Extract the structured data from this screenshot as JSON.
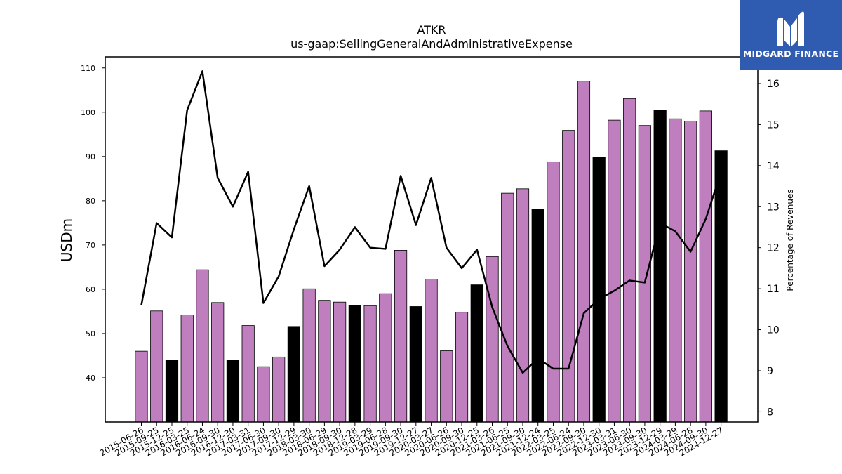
{
  "chart_data": {
    "type": "bar",
    "title": "ATKR",
    "subtitle": "us-gaap:SellingGeneralAndAdministrativeExpense",
    "ylabel": "USDm",
    "y2label": "Percentage of Revenues",
    "ylim": [
      30,
      112.5
    ],
    "y2lim": [
      7.75,
      16.65
    ],
    "yticks": [
      40,
      50,
      60,
      70,
      80,
      90,
      100,
      110
    ],
    "y2ticks": [
      8,
      9,
      10,
      11,
      12,
      13,
      14,
      15,
      16
    ],
    "categories": [
      "2015-06-26",
      "2015-09-25",
      "2015-12-25",
      "2016-03-25",
      "2016-06-24",
      "2016-09-30",
      "2016-12-30",
      "2017-03-31",
      "2017-06-30",
      "2017-09-30",
      "2017-12-29",
      "2018-03-30",
      "2018-06-29",
      "2018-09-30",
      "2018-12-28",
      "2019-03-29",
      "2019-06-28",
      "2019-09-30",
      "2019-12-27",
      "2020-03-27",
      "2020-06-26",
      "2020-09-30",
      "2020-12-25",
      "2021-03-26",
      "2021-06-25",
      "2021-09-30",
      "2021-12-24",
      "2022-03-25",
      "2022-06-24",
      "2022-09-30",
      "2022-12-30",
      "2023-03-31",
      "2023-06-30",
      "2023-09-30",
      "2023-12-29",
      "2024-03-29",
      "2024-06-28",
      "2024-09-30",
      "2024-12-27"
    ],
    "series": [
      {
        "values": [
          46.0,
          55.1,
          43.9,
          54.2,
          64.4,
          57.0,
          43.9,
          51.8,
          42.5,
          44.7,
          51.6,
          60.1,
          57.5,
          57.1,
          56.4,
          56.3,
          59.0,
          68.8,
          56.1,
          62.3,
          46.1,
          54.8,
          61.0,
          67.4,
          81.7,
          82.7,
          78.1,
          88.8,
          95.9,
          107.0,
          89.9,
          98.2,
          103.1,
          97.0,
          100.4,
          98.5,
          98.0,
          100.3,
          91.3
        ],
        "highlight": [
          false,
          false,
          true,
          false,
          false,
          false,
          true,
          false,
          false,
          false,
          true,
          false,
          false,
          false,
          true,
          false,
          false,
          false,
          true,
          false,
          false,
          false,
          true,
          false,
          false,
          false,
          true,
          false,
          false,
          false,
          true,
          false,
          false,
          false,
          true,
          false,
          false,
          false,
          true
        ]
      },
      {
        "axis": "right",
        "values": [
          10.6,
          12.6,
          12.25,
          15.35,
          16.3,
          13.7,
          13.0,
          13.85,
          10.65,
          11.3,
          12.45,
          13.5,
          11.55,
          11.95,
          12.5,
          12.0,
          11.97,
          13.75,
          12.55,
          13.7,
          12.0,
          11.5,
          11.95,
          10.55,
          9.6,
          8.95,
          9.3,
          9.05,
          9.05,
          10.4,
          10.75,
          10.95,
          11.2,
          11.15,
          12.6,
          12.4,
          11.9,
          12.7,
          13.85
        ]
      }
    ],
    "colors": {
      "bar": "#bf7fbf",
      "highlight_bar": "#000000",
      "line": "#000000"
    }
  },
  "logo": {
    "text": "MIDGARD FINANCE",
    "bg": "#2f5bb0"
  }
}
